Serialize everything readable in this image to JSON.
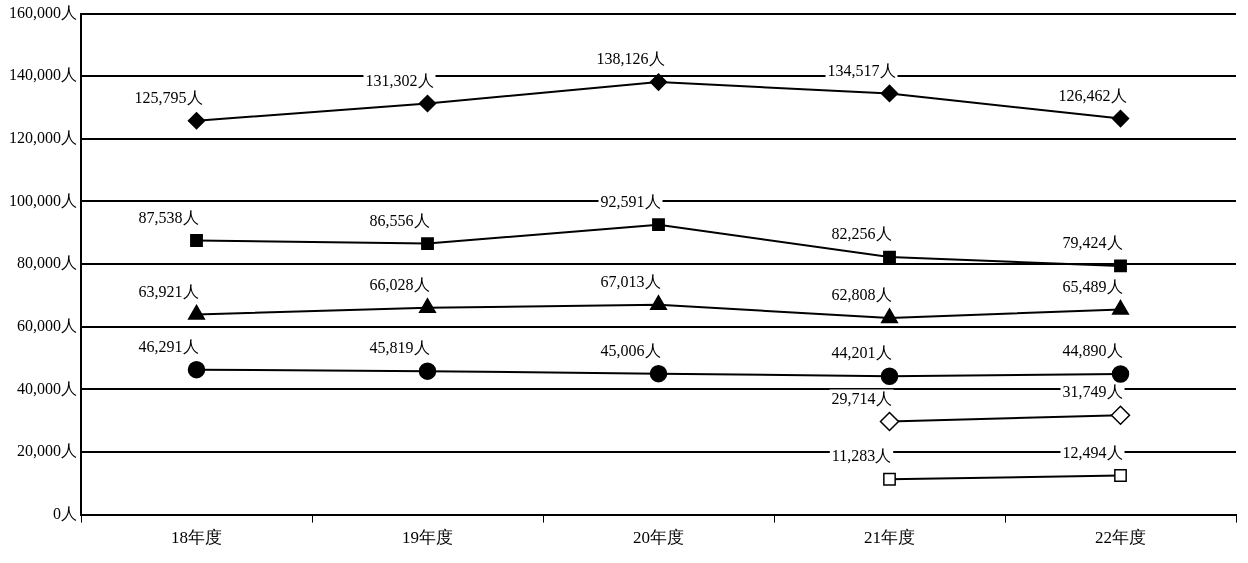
{
  "chart_data": {
    "type": "line",
    "categories": [
      "18年度",
      "19年度",
      "20年度",
      "21年度",
      "22年度"
    ],
    "series": [
      {
        "color": "#000000",
        "marker": "diamond",
        "values": [
          125795,
          131302,
          138126,
          134517,
          126462
        ],
        "value_labels": [
          "125,795人",
          "131,302人",
          "138,126人",
          "134,517人",
          "126,462人"
        ]
      },
      {
        "color": "#000000",
        "marker": "square",
        "values": [
          87538,
          86556,
          92591,
          82256,
          79424
        ],
        "value_labels": [
          "87,538人",
          "86,556人",
          "92,591人",
          "82,256人",
          "79,424人"
        ]
      },
      {
        "color": "#000000",
        "marker": "triangle",
        "values": [
          63921,
          66028,
          67013,
          62808,
          65489
        ],
        "value_labels": [
          "63,921人",
          "66,028人",
          "67,013人",
          "62,808人",
          "65,489人"
        ]
      },
      {
        "color": "#000000",
        "marker": "circle",
        "values": [
          46291,
          45819,
          45006,
          44201,
          44890
        ],
        "value_labels": [
          "46,291人",
          "45,819人",
          "45,006人",
          "44,201人",
          "44,890人"
        ]
      },
      {
        "color": "#000000",
        "marker": "diamond-open",
        "values": [
          null,
          null,
          null,
          29714,
          31749
        ],
        "value_labels": [
          null,
          null,
          null,
          "29,714人",
          "31,749人"
        ]
      },
      {
        "color": "#000000",
        "marker": "square-open",
        "values": [
          null,
          null,
          null,
          11283,
          12494
        ],
        "value_labels": [
          null,
          null,
          null,
          "11,283人",
          "12,494人"
        ]
      }
    ],
    "ylim": [
      0,
      160000
    ],
    "yticks": [
      {
        "value": 0,
        "label": "0人"
      },
      {
        "value": 20000,
        "label": "20,000人"
      },
      {
        "value": 40000,
        "label": "40,000人"
      },
      {
        "value": 60000,
        "label": "60,000人"
      },
      {
        "value": 80000,
        "label": "80,000人"
      },
      {
        "value": 100000,
        "label": "100,000人"
      },
      {
        "value": 120000,
        "label": "120,000人"
      },
      {
        "value": 140000,
        "label": "140,000人"
      },
      {
        "value": 160000,
        "label": "160,000人"
      }
    ],
    "grid": "y",
    "legend": false,
    "line_style": "solid"
  }
}
